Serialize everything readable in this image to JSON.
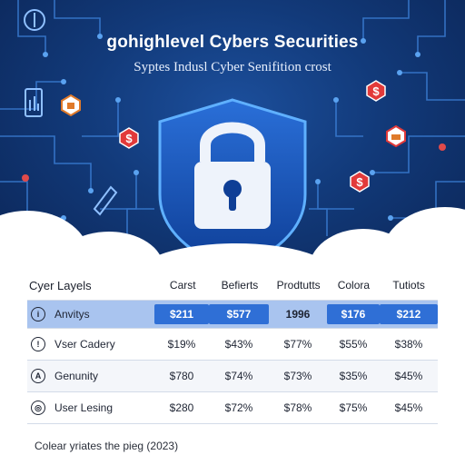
{
  "header": {
    "title": "gohighlevel Cybers Securities",
    "subtitle": "Syptes Indusl Cyber Senifition crost"
  },
  "colors": {
    "background": "#123a7a",
    "accent": "#2f6fd6",
    "highlight_row": "#a9c4ef",
    "badge_red": "#e23a3a"
  },
  "table": {
    "headers": [
      "Cyer Layels",
      "Carst",
      "Befierts",
      "Prodtutts",
      "Colora",
      "Tutiots"
    ],
    "rows": [
      {
        "icon": "info-icon",
        "glyph": "i",
        "label": "Anvitys",
        "cells": [
          "$211",
          "$577",
          "1996",
          "$176",
          "$212"
        ]
      },
      {
        "icon": "alert-icon",
        "glyph": "!",
        "label": "Vser Cadery",
        "cells": [
          "$19%",
          "$43%",
          "$77%",
          "$55%",
          "$38%"
        ]
      },
      {
        "icon": "user-icon",
        "glyph": "A",
        "label": "Genunity",
        "cells": [
          "$780",
          "$74%",
          "$73%",
          "$35%",
          "$45%"
        ]
      },
      {
        "icon": "shield-icon",
        "glyph": "◎",
        "label": "User Lesing",
        "cells": [
          "$280",
          "$72%",
          "$78%",
          "$75%",
          "$45%"
        ]
      }
    ]
  },
  "footer": {
    "caption": "Colear yriates the pieg (2023)"
  }
}
